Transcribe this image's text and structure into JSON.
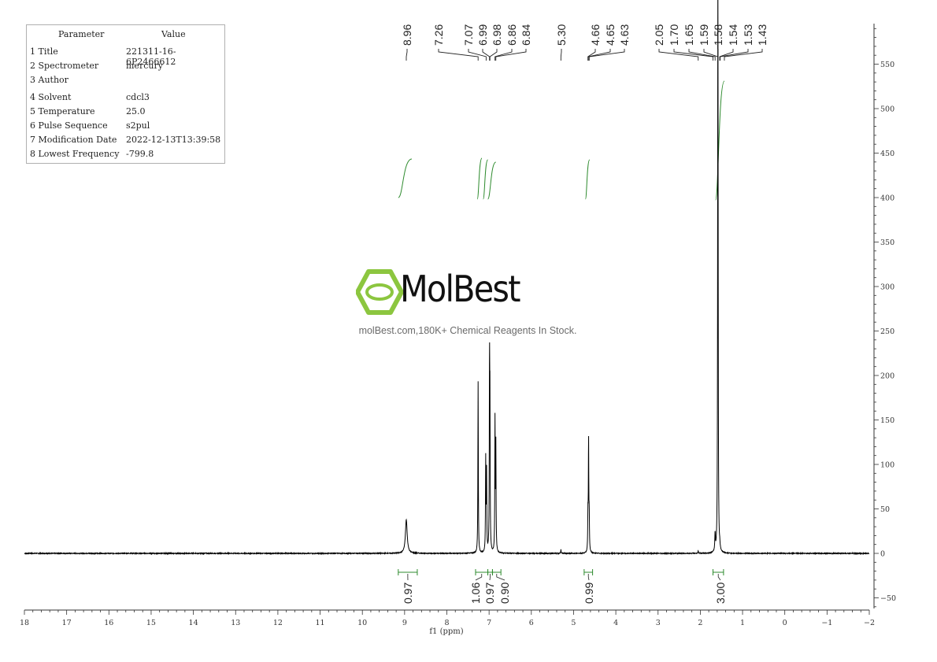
{
  "parameters": {
    "header": {
      "parameter": "Parameter",
      "value": "Value"
    },
    "rows": [
      {
        "key": "1 Title",
        "value": "221311-16-6P2466612"
      },
      {
        "key": "2 Spectrometer",
        "value": "mercury"
      },
      {
        "key": "3 Author",
        "value": ""
      },
      {
        "key": "4 Solvent",
        "value": "cdcl3"
      },
      {
        "key": "5 Temperature",
        "value": "25.0"
      },
      {
        "key": "6 Pulse Sequence",
        "value": "s2pul"
      },
      {
        "key": "7 Modification Date",
        "value": "2022-12-13T13:39:58"
      },
      {
        "key": "8 Lowest Frequency",
        "value": "-799.8"
      }
    ]
  },
  "watermark": {
    "brand": "MolBest",
    "tagline": "molBest.com,180K+ Chemical Reagents In Stock."
  },
  "colors": {
    "spectrum": "#000000",
    "integral": "#2e8b2e",
    "logo": "#8cc63f",
    "axis": "#333333"
  },
  "chart_data": {
    "type": "line",
    "xlabel": "f1 (ppm)",
    "xlim": [
      18,
      -2
    ],
    "ylim": [
      -55,
      590
    ],
    "x_ticks": [
      "18",
      "17",
      "16",
      "15",
      "14",
      "13",
      "12",
      "11",
      "10",
      "9",
      "8",
      "7",
      "6",
      "5",
      "4",
      "3",
      "2",
      "1",
      "0",
      "−1",
      "−2"
    ],
    "y_ticks": [
      "550",
      "500",
      "450",
      "400",
      "350",
      "300",
      "250",
      "200",
      "150",
      "100",
      "50",
      "0",
      "−50"
    ],
    "peak_labels": [
      "8.96",
      "7.26",
      "7.07",
      "6.99",
      "6.98",
      "6.86",
      "6.84",
      "5.30",
      "4.66",
      "4.65",
      "4.63",
      "2.05",
      "1.70",
      "1.65",
      "1.59",
      "1.58",
      "1.54",
      "1.53",
      "1.43"
    ],
    "peaks": [
      {
        "ppm": 8.96,
        "height": 38,
        "width": 0.025
      },
      {
        "ppm": 7.26,
        "height": 193,
        "width": 0.006
      },
      {
        "ppm": 7.08,
        "height": 104,
        "width": 0.006
      },
      {
        "ppm": 7.06,
        "height": 88,
        "width": 0.006
      },
      {
        "ppm": 6.99,
        "height": 202,
        "width": 0.006
      },
      {
        "ppm": 6.98,
        "height": 150,
        "width": 0.006
      },
      {
        "ppm": 6.86,
        "height": 147,
        "width": 0.006
      },
      {
        "ppm": 6.84,
        "height": 118,
        "width": 0.006
      },
      {
        "ppm": 5.3,
        "height": 5,
        "width": 0.005
      },
      {
        "ppm": 4.66,
        "height": 38,
        "width": 0.006
      },
      {
        "ppm": 4.645,
        "height": 125,
        "width": 0.006
      },
      {
        "ppm": 4.63,
        "height": 38,
        "width": 0.006
      },
      {
        "ppm": 2.05,
        "height": 3,
        "width": 0.006
      },
      {
        "ppm": 1.65,
        "height": 20,
        "width": 0.008
      },
      {
        "ppm": 1.585,
        "height": 545,
        "width": 0.006
      },
      {
        "ppm": 1.58,
        "height": 200,
        "width": 0.006
      },
      {
        "ppm": 1.54,
        "height": 5,
        "width": 0.008
      }
    ],
    "integrals": [
      {
        "from": 9.15,
        "to": 8.7,
        "value": "0.97"
      },
      {
        "from": 7.32,
        "to": 7.03,
        "value": "1.06"
      },
      {
        "from": 7.03,
        "to": 6.92,
        "value": "0.97"
      },
      {
        "from": 6.92,
        "to": 6.72,
        "value": "0.90"
      },
      {
        "from": 4.75,
        "to": 4.55,
        "value": "0.99"
      },
      {
        "from": 1.7,
        "to": 1.45,
        "value": "3.00"
      }
    ]
  }
}
